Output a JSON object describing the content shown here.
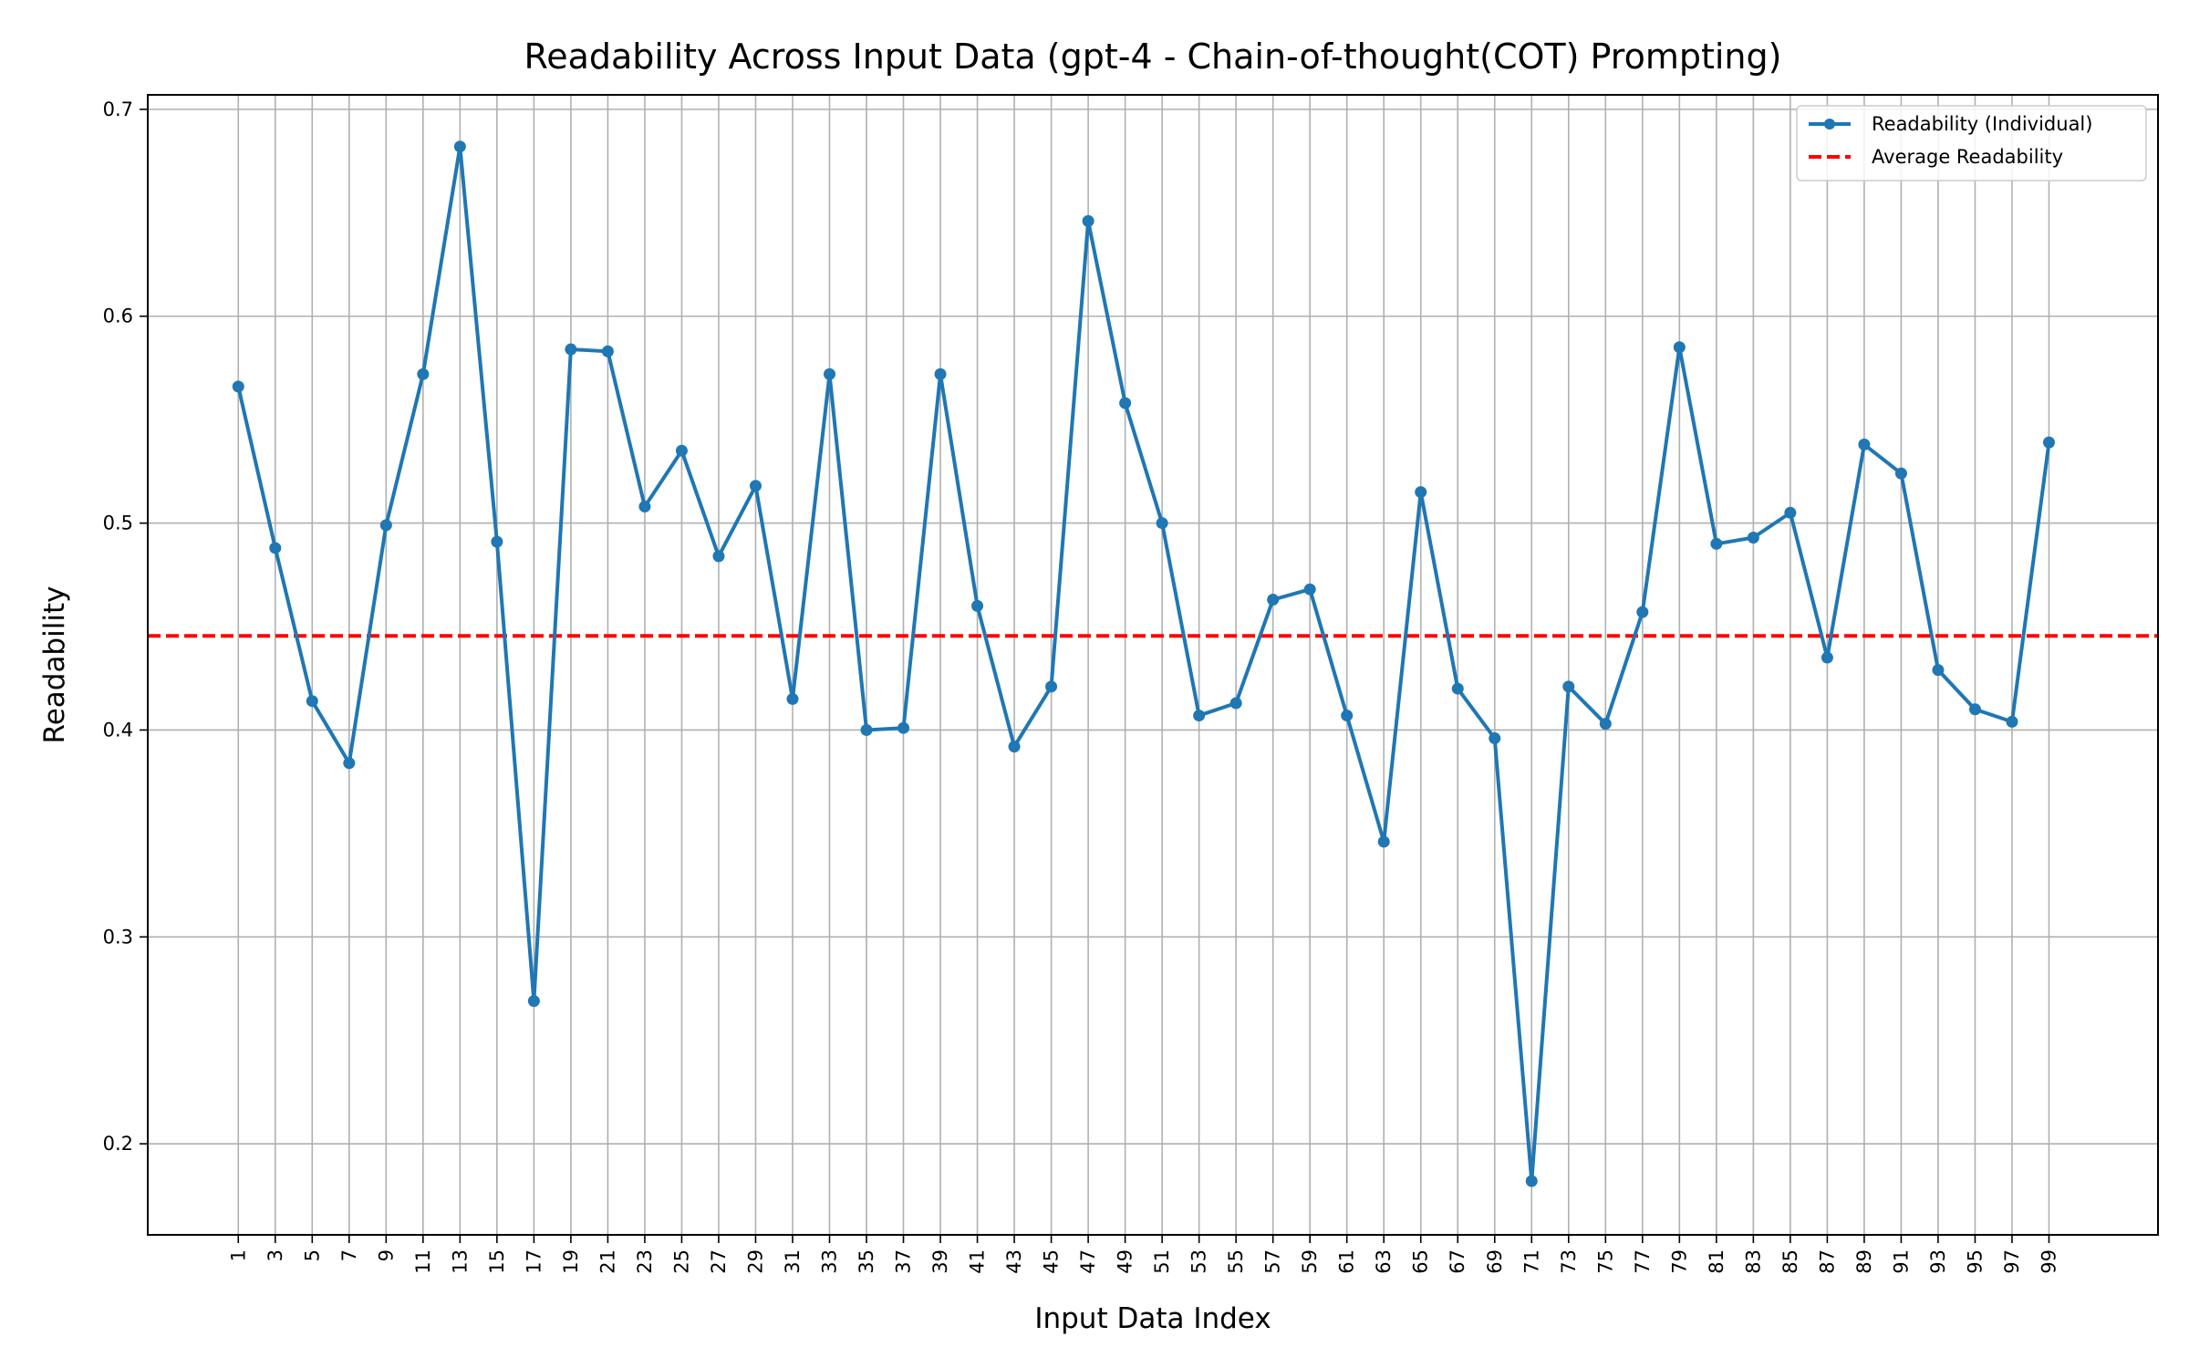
{
  "chart_data": {
    "type": "line",
    "title": "Readability Across Input Data (gpt-4 - Chain-of-thought(COT) Prompting)",
    "xlabel": "Input Data Index",
    "ylabel": "Readability",
    "x": [
      1,
      3,
      5,
      7,
      9,
      11,
      13,
      15,
      17,
      19,
      21,
      23,
      25,
      27,
      29,
      31,
      33,
      35,
      37,
      39,
      41,
      43,
      45,
      47,
      49,
      51,
      53,
      55,
      57,
      59,
      61,
      63,
      65,
      67,
      69,
      71,
      73,
      75,
      77,
      79,
      81,
      83,
      85,
      87,
      89,
      91,
      93,
      95,
      97,
      99
    ],
    "xticks": [
      "1",
      "3",
      "5",
      "7",
      "9",
      "11",
      "13",
      "15",
      "17",
      "19",
      "21",
      "23",
      "25",
      "27",
      "29",
      "31",
      "33",
      "35",
      "37",
      "39",
      "41",
      "43",
      "45",
      "47",
      "49",
      "51",
      "53",
      "55",
      "57",
      "59",
      "61",
      "63",
      "65",
      "67",
      "69",
      "71",
      "73",
      "75",
      "77",
      "79",
      "81",
      "83",
      "85",
      "87",
      "89",
      "91",
      "93",
      "95",
      "97",
      "99"
    ],
    "series": [
      {
        "name": "Readability (Individual)",
        "color": "#1f77b4",
        "style": "solid-with-markers",
        "values": [
          0.566,
          0.488,
          0.414,
          0.384,
          0.499,
          0.572,
          0.682,
          0.491,
          0.269,
          0.584,
          0.583,
          0.508,
          0.535,
          0.484,
          0.518,
          0.415,
          0.572,
          0.4,
          0.401,
          0.572,
          0.46,
          0.392,
          0.421,
          0.646,
          0.558,
          0.5,
          0.407,
          0.413,
          0.463,
          0.468,
          0.407,
          0.346,
          0.515,
          0.42,
          0.396,
          0.182,
          0.421,
          0.403,
          0.457,
          0.585,
          0.49,
          0.493,
          0.505,
          0.435,
          0.538,
          0.524,
          0.429,
          0.41,
          0.404,
          0.539
        ]
      },
      {
        "name": "Average Readability",
        "color": "#ff0000",
        "style": "dashed",
        "value": 0.4455
      }
    ],
    "yticks": [
      "0.2",
      "0.3",
      "0.4",
      "0.5",
      "0.6",
      "0.7"
    ],
    "ytick_values": [
      0.2,
      0.3,
      0.4,
      0.5,
      0.6,
      0.7
    ],
    "ylim": [
      0.156,
      0.707
    ],
    "xlim": [
      -3.9,
      104.9
    ],
    "grid": true,
    "legend_position": "top-right"
  }
}
